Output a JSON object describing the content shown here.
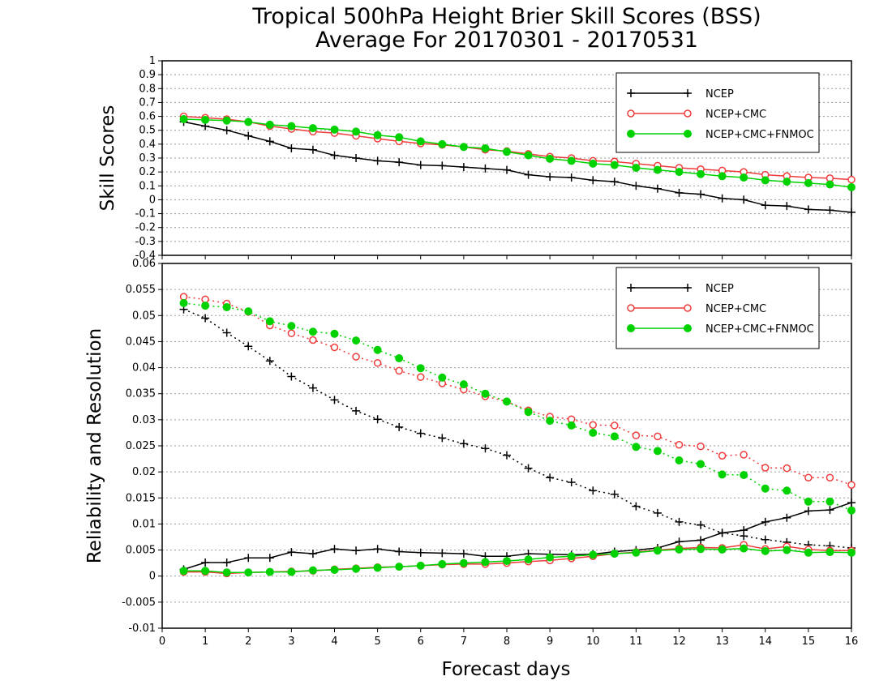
{
  "title": {
    "line1": "Tropical 500hPa Height Brier Skill Scores (BSS)",
    "line2": "Average For 20170301 - 20170531"
  },
  "colors": {
    "NCEP": "#000000",
    "NCEP+CMC": "#ef3b3b",
    "NCEP+CMC+FNMOC": "#00d200"
  },
  "chart_data": [
    {
      "type": "line",
      "ylabel": "Skill Scores",
      "xlim": [
        0,
        16
      ],
      "ylim": [
        -0.4,
        1
      ],
      "x_ticks": [
        "0",
        "1",
        "2",
        "3",
        "4",
        "5",
        "6",
        "7",
        "8",
        "9",
        "10",
        "11",
        "12",
        "13",
        "14",
        "15",
        "16"
      ],
      "y_ticks": [
        "-0.4",
        "-0.3",
        "-0.2",
        "-0.1",
        "0",
        "0.1",
        "0.2",
        "0.3",
        "0.4",
        "0.5",
        "0.6",
        "0.7",
        "0.8",
        "0.9",
        "1"
      ],
      "grid": "horizontal dotted",
      "legend_position": "top-right",
      "x": [
        0.5,
        1,
        1.5,
        2,
        2.5,
        3,
        3.5,
        4,
        4.5,
        5,
        5.5,
        6,
        6.5,
        7,
        7.5,
        8,
        8.5,
        9,
        9.5,
        10,
        10.5,
        11,
        11.5,
        12,
        12.5,
        13,
        13.5,
        14,
        14.5,
        15,
        15.5,
        16
      ],
      "series": [
        {
          "name": "NCEP",
          "line": "solid",
          "marker": "plus",
          "values": [
            0.56,
            0.53,
            0.5,
            0.46,
            0.42,
            0.37,
            0.36,
            0.32,
            0.3,
            0.28,
            0.27,
            0.25,
            0.245,
            0.235,
            0.225,
            0.215,
            0.18,
            0.165,
            0.16,
            0.14,
            0.13,
            0.1,
            0.08,
            0.05,
            0.04,
            0.01,
            0.0,
            -0.04,
            -0.045,
            -0.07,
            -0.075,
            -0.09
          ]
        },
        {
          "name": "NCEP+CMC",
          "line": "solid",
          "marker": "open-circle",
          "values": [
            0.6,
            0.59,
            0.58,
            0.56,
            0.53,
            0.51,
            0.49,
            0.48,
            0.46,
            0.44,
            0.42,
            0.405,
            0.395,
            0.38,
            0.36,
            0.35,
            0.33,
            0.31,
            0.3,
            0.28,
            0.275,
            0.26,
            0.245,
            0.23,
            0.22,
            0.21,
            0.2,
            0.18,
            0.17,
            0.16,
            0.155,
            0.145
          ]
        },
        {
          "name": "NCEP+CMC+FNMOC",
          "line": "solid",
          "marker": "filled-circle",
          "values": [
            0.58,
            0.575,
            0.57,
            0.56,
            0.54,
            0.53,
            0.515,
            0.505,
            0.49,
            0.465,
            0.45,
            0.42,
            0.4,
            0.38,
            0.37,
            0.345,
            0.32,
            0.295,
            0.28,
            0.26,
            0.25,
            0.23,
            0.215,
            0.2,
            0.185,
            0.17,
            0.16,
            0.14,
            0.13,
            0.12,
            0.11,
            0.09
          ]
        }
      ]
    },
    {
      "type": "line",
      "ylabel": "Reliability and Resolution",
      "xlabel": "Forecast days",
      "xlim": [
        0,
        16
      ],
      "ylim": [
        -0.01,
        0.06
      ],
      "x_ticks": [
        "0",
        "1",
        "2",
        "3",
        "4",
        "5",
        "6",
        "7",
        "8",
        "9",
        "10",
        "11",
        "12",
        "13",
        "14",
        "15",
        "16"
      ],
      "y_ticks": [
        "-0.01",
        "-0.005",
        "0",
        "0.005",
        "0.01",
        "0.015",
        "0.02",
        "0.025",
        "0.03",
        "0.035",
        "0.04",
        "0.045",
        "0.05",
        "0.055",
        "0.06"
      ],
      "grid": "horizontal dotted",
      "legend_position": "top-right",
      "x": [
        0.5,
        1,
        1.5,
        2,
        2.5,
        3,
        3.5,
        4,
        4.5,
        5,
        5.5,
        6,
        6.5,
        7,
        7.5,
        8,
        8.5,
        9,
        9.5,
        10,
        10.5,
        11,
        11.5,
        12,
        12.5,
        13,
        13.5,
        14,
        14.5,
        15,
        15.5,
        16
      ],
      "series": [
        {
          "name": "NCEP",
          "line": "dotted",
          "marker": "plus",
          "values": [
            0.0512,
            0.0495,
            0.0467,
            0.0441,
            0.0413,
            0.0383,
            0.0361,
            0.0338,
            0.0317,
            0.0301,
            0.0286,
            0.0274,
            0.0265,
            0.0254,
            0.0245,
            0.0232,
            0.0207,
            0.0189,
            0.018,
            0.0164,
            0.0157,
            0.0134,
            0.0121,
            0.0104,
            0.0098,
            0.0083,
            0.0077,
            0.007,
            0.0065,
            0.006,
            0.0058,
            0.0054
          ]
        },
        {
          "name": "NCEP+CMC",
          "line": "dotted",
          "marker": "open-circle",
          "values": [
            0.0536,
            0.0531,
            0.0523,
            0.0507,
            0.0481,
            0.0466,
            0.0453,
            0.0439,
            0.0421,
            0.0409,
            0.0394,
            0.0382,
            0.037,
            0.0358,
            0.0345,
            0.0335,
            0.0318,
            0.0306,
            0.0301,
            0.029,
            0.0289,
            0.027,
            0.0268,
            0.0252,
            0.0249,
            0.0231,
            0.0233,
            0.0208,
            0.0207,
            0.0189,
            0.0189,
            0.0175
          ]
        },
        {
          "name": "NCEP+CMC+FNMOC",
          "line": "dotted",
          "marker": "filled-circle",
          "values": [
            0.0524,
            0.0519,
            0.0516,
            0.0508,
            0.0489,
            0.048,
            0.0469,
            0.0465,
            0.0452,
            0.0434,
            0.0418,
            0.0399,
            0.0381,
            0.0368,
            0.035,
            0.0335,
            0.0315,
            0.0298,
            0.0289,
            0.0275,
            0.0268,
            0.0248,
            0.024,
            0.0222,
            0.0215,
            0.0195,
            0.0194,
            0.0168,
            0.0164,
            0.0143,
            0.0143,
            0.0126
          ]
        },
        {
          "name": "NCEP",
          "line": "solid",
          "marker": "plus",
          "values": [
            0.0013,
            0.0026,
            0.0026,
            0.0035,
            0.0035,
            0.0046,
            0.0043,
            0.0052,
            0.0049,
            0.0052,
            0.0047,
            0.0045,
            0.0044,
            0.0043,
            0.0038,
            0.0038,
            0.0043,
            0.0042,
            0.0041,
            0.0042,
            0.0047,
            0.005,
            0.0054,
            0.0066,
            0.0069,
            0.0083,
            0.0088,
            0.0104,
            0.0112,
            0.0125,
            0.0127,
            0.0141
          ]
        },
        {
          "name": "NCEP+CMC",
          "line": "solid",
          "marker": "open-circle",
          "values": [
            0.0008,
            0.0008,
            0.0005,
            0.0007,
            0.0008,
            0.0009,
            0.001,
            0.0013,
            0.0015,
            0.0017,
            0.0018,
            0.002,
            0.0022,
            0.0023,
            0.0023,
            0.0025,
            0.0028,
            0.003,
            0.0034,
            0.0038,
            0.0043,
            0.0046,
            0.005,
            0.0053,
            0.0055,
            0.0054,
            0.006,
            0.0052,
            0.0057,
            0.0051,
            0.0049,
            0.0049
          ]
        },
        {
          "name": "NCEP+CMC+FNMOC",
          "line": "solid",
          "marker": "filled-circle",
          "values": [
            0.001,
            0.001,
            0.0007,
            0.0007,
            0.0008,
            0.0008,
            0.0011,
            0.0012,
            0.0014,
            0.0016,
            0.0018,
            0.002,
            0.0023,
            0.0025,
            0.0027,
            0.0029,
            0.0032,
            0.0036,
            0.0038,
            0.0041,
            0.0043,
            0.0045,
            0.0049,
            0.0051,
            0.0052,
            0.0051,
            0.0053,
            0.0048,
            0.005,
            0.0045,
            0.0046,
            0.0045
          ]
        }
      ],
      "legend": [
        "NCEP",
        "NCEP+CMC",
        "NCEP+CMC+FNMOC"
      ]
    }
  ]
}
